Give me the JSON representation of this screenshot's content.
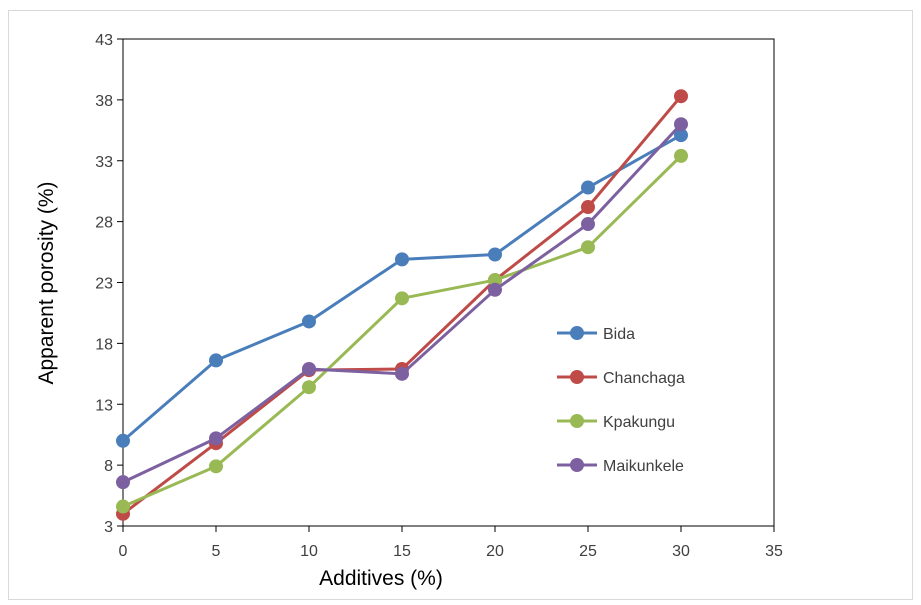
{
  "chart_data": {
    "type": "line",
    "title": "",
    "xlabel": "Additives (%)",
    "ylabel": "Apparent porosity (%)",
    "xlim": [
      0,
      35
    ],
    "ylim": [
      3,
      43
    ],
    "x_ticks": [
      "0",
      "5",
      "10",
      "15",
      "20",
      "25",
      "30",
      "35"
    ],
    "y_ticks": [
      "3",
      "8",
      "13",
      "18",
      "23",
      "28",
      "33",
      "38",
      "43"
    ],
    "grid": false,
    "legend_position": "right-inside",
    "x": [
      0,
      5,
      10,
      15,
      20,
      25,
      30
    ],
    "series": [
      {
        "name": "Bida",
        "color": "#4a7ebb",
        "values": [
          10.0,
          16.6,
          19.8,
          24.9,
          25.3,
          30.8,
          35.1
        ]
      },
      {
        "name": "Chanchaga",
        "color": "#be4b48",
        "values": [
          4.0,
          9.8,
          15.8,
          15.9,
          23.2,
          29.2,
          38.3
        ]
      },
      {
        "name": "Kpakungu",
        "color": "#98b954",
        "values": [
          4.6,
          7.9,
          14.4,
          21.7,
          23.2,
          25.9,
          33.4
        ]
      },
      {
        "name": "Maikunkele",
        "color": "#7d60a0",
        "values": [
          6.6,
          10.2,
          15.9,
          15.5,
          22.4,
          27.8,
          36.0
        ]
      }
    ]
  }
}
